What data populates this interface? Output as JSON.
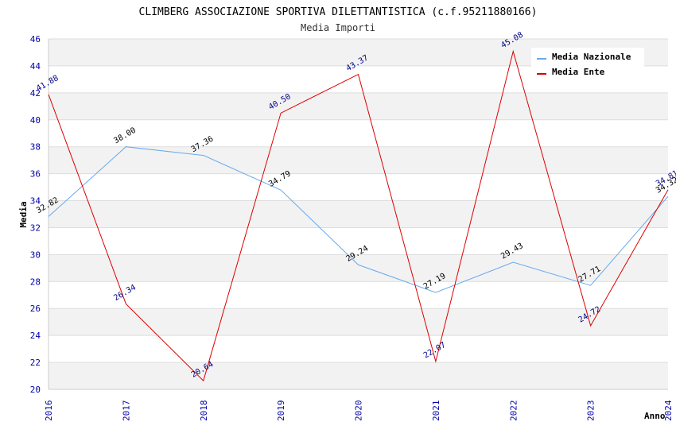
{
  "chart_data": {
    "type": "line",
    "title": "CLIMBERG ASSOCIAZIONE SPORTIVA DILETTANTISTICA (c.f.95211880166)",
    "subtitle": "Media Importi",
    "xlabel": "Anno",
    "ylabel": "Media",
    "x": [
      "2016",
      "2017",
      "2018",
      "2019",
      "2020",
      "2021",
      "2022",
      "2023",
      "2024"
    ],
    "ylim": [
      20,
      46
    ],
    "yticks": [
      "20",
      "22",
      "24",
      "26",
      "28",
      "30",
      "32",
      "34",
      "36",
      "38",
      "40",
      "42",
      "44",
      "46"
    ],
    "grid": true,
    "legend_position": "top-right",
    "series": [
      {
        "name": "Media Nazionale",
        "color": "#66aaee",
        "values": [
          32.82,
          38.0,
          37.36,
          34.79,
          29.24,
          27.19,
          29.43,
          27.71,
          34.32
        ],
        "labels": [
          "32.82",
          "38.00",
          "37.36",
          "34.79",
          "29.24",
          "27.19",
          "29.43",
          "27.71",
          "34.32"
        ]
      },
      {
        "name": "Media Ente",
        "color": "#dd0000",
        "values": [
          41.88,
          26.34,
          20.64,
          40.5,
          43.37,
          22.07,
          45.08,
          24.72,
          34.81
        ],
        "labels": [
          "41.88",
          "26.34",
          "20.64",
          "40.50",
          "43.37",
          "22.07",
          "45.08",
          "24.72",
          "34.81"
        ]
      }
    ]
  }
}
